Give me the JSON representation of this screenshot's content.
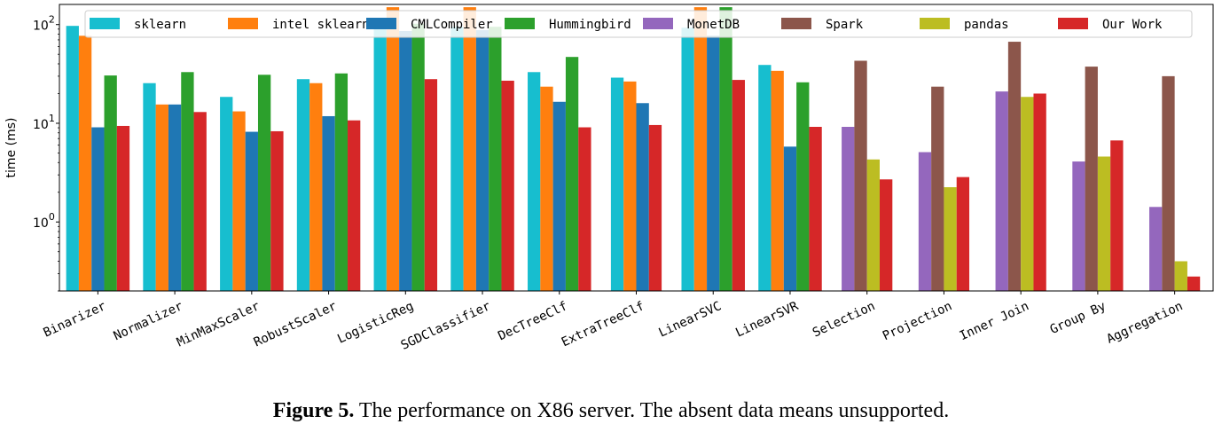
{
  "chart_data": {
    "type": "bar",
    "ylabel": "time (ms)",
    "yscale": "log",
    "ylim": [
      0.2,
      160
    ],
    "yticks": [
      {
        "value": 1,
        "label": "10",
        "exp": "0"
      },
      {
        "value": 10,
        "label": "10",
        "exp": "1"
      },
      {
        "value": 100,
        "label": "10",
        "exp": "2"
      }
    ],
    "legend_position": "top",
    "categories": [
      "Binarizer",
      "Normalizer",
      "MinMaxScaler",
      "RobustScaler",
      "LogisticReg",
      "SGDClassifier",
      "DecTreeClf",
      "ExtraTreeClf",
      "LinearSVC",
      "LinearSVR",
      "Selection",
      "Projection",
      "Inner Join",
      "Group By",
      "Aggregation"
    ],
    "series": [
      {
        "name": "sklearn",
        "color": "#17becf",
        "values": [
          97,
          25.5,
          18.5,
          28,
          95,
          95,
          33,
          29,
          93,
          39,
          null,
          null,
          null,
          null,
          null
        ]
      },
      {
        "name": "intel sklearn",
        "color": "#ff7f0e",
        "values": [
          77,
          15.5,
          13.2,
          25.5,
          150,
          150,
          23.5,
          26.5,
          150,
          34,
          null,
          null,
          null,
          null,
          null
        ]
      },
      {
        "name": "CMLCompiler",
        "color": "#1f77b4",
        "values": [
          9.1,
          15.5,
          8.2,
          11.8,
          86,
          88,
          16.5,
          16,
          77,
          5.8,
          null,
          null,
          null,
          null,
          null
        ]
      },
      {
        "name": "Hummingbird",
        "color": "#2ca02c",
        "values": [
          30.5,
          33,
          31,
          32,
          102,
          95,
          47,
          null,
          150,
          26,
          null,
          null,
          null,
          null,
          null
        ]
      },
      {
        "name": "MonetDB",
        "color": "#9467bd",
        "values": [
          null,
          null,
          null,
          null,
          null,
          null,
          null,
          null,
          null,
          null,
          9.2,
          5.1,
          21,
          4.1,
          1.42
        ]
      },
      {
        "name": "Spark",
        "color": "#8c564b",
        "values": [
          null,
          null,
          null,
          null,
          null,
          null,
          null,
          null,
          null,
          null,
          43,
          23.5,
          67,
          37.5,
          30
        ]
      },
      {
        "name": "pandas",
        "color": "#bcbd22",
        "values": [
          null,
          null,
          null,
          null,
          null,
          null,
          null,
          null,
          null,
          null,
          4.3,
          2.25,
          18.5,
          4.6,
          0.4
        ]
      },
      {
        "name": "Our Work",
        "color": "#d62728",
        "values": [
          9.4,
          13,
          8.3,
          10.7,
          28,
          27,
          9.1,
          9.6,
          27.5,
          9.2,
          2.7,
          2.85,
          20,
          6.7,
          0.28
        ]
      }
    ]
  },
  "caption": {
    "figure_label": "Figure 5.",
    "text": " The performance on X86 server. The absent data means unsupported."
  }
}
